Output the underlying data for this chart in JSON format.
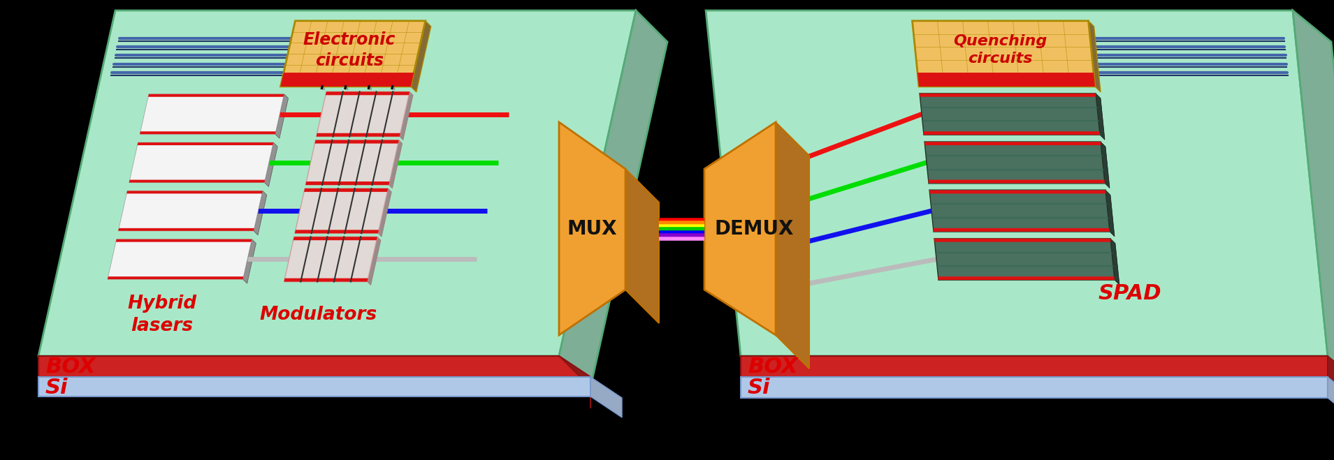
{
  "bg_color": "#000000",
  "chip_color": "#a8e8c8",
  "chip_dark": "#7ab89a",
  "box_color": "#cc2222",
  "si_color": "#b0c8e8",
  "si_dark": "#8899bb",
  "wire_color": "#4466aa",
  "wire_dark": "#223366",
  "laser_white": "#f4f4f4",
  "laser_red": "#dd1111",
  "laser_dark": "#333333",
  "mod_color": "#e8d8d8",
  "mod_lines": "#222222",
  "ec_color": "#f0c060",
  "ec_red": "#dd1111",
  "mux_color": "#f0a030",
  "mux_dark": "#b07020",
  "rainbow": [
    "#ff0000",
    "#ff8800",
    "#ffff00",
    "#00cc00",
    "#0000ff",
    "#8800cc",
    "#ff88ff"
  ],
  "spad_color": "#4a7060",
  "spad_dark": "#2a4040",
  "wg_colors": [
    "#ee1111",
    "#00dd00",
    "#1111ee",
    "#bbbbbb"
  ],
  "text_ec": "Electronic\ncircuits",
  "text_mux": "MUX",
  "text_demux": "DEMUX",
  "text_qc": "Quenching\ncircuits",
  "text_spad": "SPAD",
  "text_lasers": "Hybrid\nlasers",
  "text_mods": "Modulators",
  "text_box": "BOX",
  "text_si": "Si"
}
